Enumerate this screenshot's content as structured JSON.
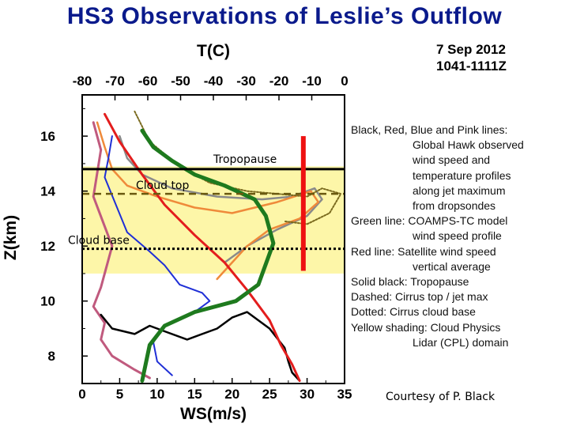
{
  "title": "HS3 Observations of Leslie’s Outflow",
  "date_line1": "7 Sep 2012",
  "date_line2": "1041-1111Z",
  "courtesy": "Courtesy of P. Black",
  "legend": [
    {
      "head": "Black, Red, Blue and Pink lines:",
      "text": ""
    },
    {
      "head": "",
      "text": "Global Hawk observed"
    },
    {
      "head": "",
      "text": "wind speed and"
    },
    {
      "head": "",
      "text": "temperature profiles"
    },
    {
      "head": "",
      "text": "along jet maximum"
    },
    {
      "head": "",
      "text": "from dropsondes"
    },
    {
      "head": "Green line: COAMPS-TC model",
      "text": ""
    },
    {
      "head": "",
      "text": "wind speed profile"
    },
    {
      "head": "Red line: Satellite wind speed",
      "text": ""
    },
    {
      "head": "",
      "text": "vertical average"
    },
    {
      "head": "Solid black: Tropopause",
      "text": ""
    },
    {
      "head": "Dashed:    Cirrus top / jet max",
      "text": ""
    },
    {
      "head": "Dotted:     Cirrus cloud base",
      "text": ""
    },
    {
      "head": "Yellow shading:        Cloud Physics",
      "text": ""
    },
    {
      "head": "",
      "text": "Lidar (CPL) domain"
    }
  ],
  "chart_data": {
    "type": "line",
    "xlabel": "WS(m/s)",
    "ylabel": "Z(km)",
    "top_axis_label": "T(C)",
    "xlim": [
      0,
      35
    ],
    "ylim": [
      7,
      17.5
    ],
    "top_xlim": [
      -80,
      0
    ],
    "x_ticks": [
      "0",
      "5",
      "10",
      "15",
      "20",
      "25",
      "30",
      "35"
    ],
    "y_ticks": [
      "8",
      "10",
      "12",
      "14",
      "16"
    ],
    "top_ticks": [
      "-80",
      "-70",
      "-60",
      "-50",
      "-40",
      "-30",
      "-20",
      "-10",
      "0"
    ],
    "annotations": {
      "tropopause": "Tropopause",
      "cloud_top": "Cloud top",
      "cloud_base": "Cloud base"
    },
    "levels_km": {
      "tropopause": 14.8,
      "cloud_top": 13.9,
      "cloud_base": 11.9
    },
    "cpl_shading_km": [
      11.0,
      14.9
    ],
    "satellite_bar": {
      "ws": 29.5,
      "z": [
        11.1,
        16.0
      ]
    },
    "series": [
      {
        "name": "Black",
        "color": "#000000",
        "ws": [
          2.5,
          4,
          7,
          9,
          11,
          14,
          18,
          20,
          22,
          25,
          27,
          27.5,
          28,
          29
        ],
        "z": [
          9.5,
          9.0,
          8.8,
          9.1,
          8.9,
          8.6,
          9.0,
          9.4,
          9.6,
          9.0,
          8.3,
          7.8,
          7.4,
          7.1
        ]
      },
      {
        "name": "Red",
        "color": "#e31d1d",
        "ws": [
          3,
          5,
          8,
          11,
          15,
          19,
          22,
          25,
          26.5,
          28,
          29
        ],
        "z": [
          16.8,
          15.8,
          14.6,
          13.5,
          12.4,
          11.4,
          10.4,
          9.3,
          8.4,
          7.7,
          7.1
        ]
      },
      {
        "name": "Blue",
        "color": "#1f2fd6",
        "ws": [
          4,
          3.5,
          3,
          6,
          9,
          11,
          13,
          16,
          17,
          15,
          11,
          9.5,
          10,
          12
        ],
        "z": [
          16.0,
          15.2,
          14.5,
          12.5,
          11.8,
          11.3,
          10.6,
          10.3,
          10.0,
          9.6,
          9.1,
          8.5,
          7.8,
          7.3
        ]
      },
      {
        "name": "Pink",
        "color": "#c05a7e",
        "ws": [
          1.5,
          2.5,
          1.5,
          4,
          2.5,
          1.5,
          3,
          2.5,
          4,
          7,
          9
        ],
        "z": [
          16.5,
          15.5,
          13.8,
          12.0,
          10.5,
          9.8,
          9.2,
          8.6,
          8.0,
          7.5,
          7.2
        ]
      },
      {
        "name": "COAMPS-TC",
        "color": "#1e7a1e",
        "ws": [
          8,
          9.5,
          12,
          15,
          19,
          23,
          24.5,
          25.5,
          23.5,
          20.5,
          15,
          11,
          9,
          8
        ],
        "z": [
          16.2,
          15.6,
          15.1,
          14.6,
          14.2,
          13.7,
          13.1,
          12.1,
          10.6,
          10.0,
          9.6,
          9.1,
          8.4,
          7.1
        ]
      },
      {
        "name": "Orange",
        "color": "#ef8a3a",
        "ws": [
          2,
          3,
          4,
          6,
          10,
          15,
          20,
          26,
          30.5,
          31.5,
          29,
          25,
          22,
          20,
          18
        ],
        "z": [
          16.5,
          15.6,
          14.8,
          14.2,
          13.8,
          13.4,
          13.2,
          13.6,
          14.0,
          13.6,
          13.0,
          12.6,
          12.0,
          11.4,
          10.8
        ]
      },
      {
        "name": "Gray",
        "color": "#8a8a8a",
        "ws": [
          5,
          6,
          8,
          12,
          18,
          24,
          28,
          31,
          32,
          30,
          26,
          22,
          19
        ],
        "z": [
          16.0,
          15.2,
          14.6,
          14.1,
          13.8,
          13.7,
          13.8,
          14.1,
          13.7,
          13.1,
          12.6,
          12.0,
          11.4
        ]
      },
      {
        "name": "Olive",
        "color": "#7a6a1e",
        "ws": [
          7,
          9,
          13,
          17,
          22,
          26,
          30,
          32,
          34.5,
          33,
          30,
          27
        ],
        "z": [
          16.9,
          15.8,
          14.9,
          14.3,
          14.0,
          13.9,
          13.8,
          14.1,
          13.9,
          13.2,
          12.8,
          12.9
        ]
      }
    ]
  },
  "colors": {
    "title": "#0a1a8c",
    "cpl_shading": "#fdf6a8",
    "satellite": "#ee1111"
  }
}
